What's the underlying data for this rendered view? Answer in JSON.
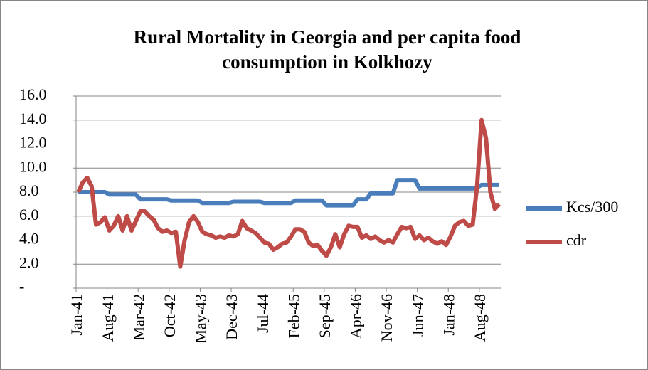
{
  "chart_data": {
    "type": "line",
    "title": "Rural Mortality in Georgia and per capita food consumption in Kolkhozy",
    "categories": [
      "Jan-41",
      null,
      null,
      null,
      null,
      null,
      null,
      "Aug-41",
      null,
      null,
      null,
      null,
      null,
      null,
      "Mar-42",
      null,
      null,
      null,
      null,
      null,
      null,
      "Oct-42",
      null,
      null,
      null,
      null,
      null,
      null,
      "May-43",
      null,
      null,
      null,
      null,
      null,
      null,
      "Dec-43",
      null,
      null,
      null,
      null,
      null,
      null,
      "Jul-44",
      null,
      null,
      null,
      null,
      null,
      null,
      "Feb-45",
      null,
      null,
      null,
      null,
      null,
      null,
      "Sep-45",
      null,
      null,
      null,
      null,
      null,
      null,
      "Apr-46",
      null,
      null,
      null,
      null,
      null,
      null,
      "Nov-46",
      null,
      null,
      null,
      null,
      null,
      null,
      "Jun-47",
      null,
      null,
      null,
      null,
      null,
      null,
      "Jan-48",
      null,
      null,
      null,
      null,
      null,
      null,
      "Aug-48",
      null,
      null,
      null,
      null
    ],
    "series": [
      {
        "name": "Kcs/300",
        "color": "#4a7ebb",
        "values": [
          8.0,
          8.0,
          8.0,
          8.0,
          8.0,
          8.0,
          8.0,
          7.8,
          7.8,
          7.8,
          7.8,
          7.8,
          7.8,
          7.8,
          7.4,
          7.4,
          7.4,
          7.4,
          7.4,
          7.4,
          7.4,
          7.3,
          7.3,
          7.3,
          7.3,
          7.3,
          7.3,
          7.3,
          7.1,
          7.1,
          7.1,
          7.1,
          7.1,
          7.1,
          7.1,
          7.2,
          7.2,
          7.2,
          7.2,
          7.2,
          7.2,
          7.2,
          7.1,
          7.1,
          7.1,
          7.1,
          7.1,
          7.1,
          7.1,
          7.3,
          7.3,
          7.3,
          7.3,
          7.3,
          7.3,
          7.3,
          6.9,
          6.9,
          6.9,
          6.9,
          6.9,
          6.9,
          6.9,
          7.4,
          7.4,
          7.4,
          7.9,
          7.9,
          7.9,
          7.9,
          7.9,
          7.9,
          9.0,
          9.0,
          9.0,
          9.0,
          9.0,
          8.3,
          8.3,
          8.3,
          8.3,
          8.3,
          8.3,
          8.3,
          8.3,
          8.3,
          8.3,
          8.3,
          8.3,
          8.3,
          8.4,
          8.6,
          8.6,
          8.6,
          8.6,
          8.6
        ]
      },
      {
        "name": "cdr",
        "color": "#be4b48",
        "values": [
          8.0,
          8.8,
          9.2,
          8.5,
          5.3,
          5.5,
          5.9,
          4.8,
          5.2,
          6.0,
          4.8,
          6.0,
          4.8,
          5.6,
          6.4,
          6.4,
          6.0,
          5.7,
          5.0,
          4.7,
          4.8,
          4.6,
          4.7,
          1.8,
          4.0,
          5.5,
          6.0,
          5.5,
          4.7,
          4.5,
          4.4,
          4.2,
          4.3,
          4.2,
          4.4,
          4.3,
          4.5,
          5.6,
          5.0,
          4.8,
          4.6,
          4.2,
          3.8,
          3.7,
          3.2,
          3.4,
          3.7,
          3.8,
          4.3,
          4.9,
          4.9,
          4.7,
          3.8,
          3.5,
          3.6,
          3.1,
          2.7,
          3.4,
          4.5,
          3.4,
          4.5,
          5.2,
          5.1,
          5.1,
          4.2,
          4.4,
          4.1,
          4.3,
          4.0,
          3.8,
          4.0,
          3.8,
          4.5,
          5.1,
          5.0,
          5.1,
          4.1,
          4.4,
          4.0,
          4.2,
          3.9,
          3.7,
          3.9,
          3.6,
          4.3,
          5.2,
          5.5,
          5.6,
          5.2,
          5.3,
          8.5,
          14.0,
          12.5,
          8.0,
          6.6,
          7.0
        ]
      }
    ],
    "ylim": [
      0,
      16
    ],
    "yticks": [
      {
        "value": 0,
        "label": "-"
      },
      {
        "value": 2,
        "label": "2.0"
      },
      {
        "value": 4,
        "label": "4.0"
      },
      {
        "value": 6,
        "label": "6.0"
      },
      {
        "value": 8,
        "label": "8.0"
      },
      {
        "value": 10,
        "label": "10.0"
      },
      {
        "value": 12,
        "label": "12.0"
      },
      {
        "value": 14,
        "label": "14.0"
      },
      {
        "value": 16,
        "label": "16.0"
      }
    ],
    "grid": true,
    "legend": "right"
  }
}
